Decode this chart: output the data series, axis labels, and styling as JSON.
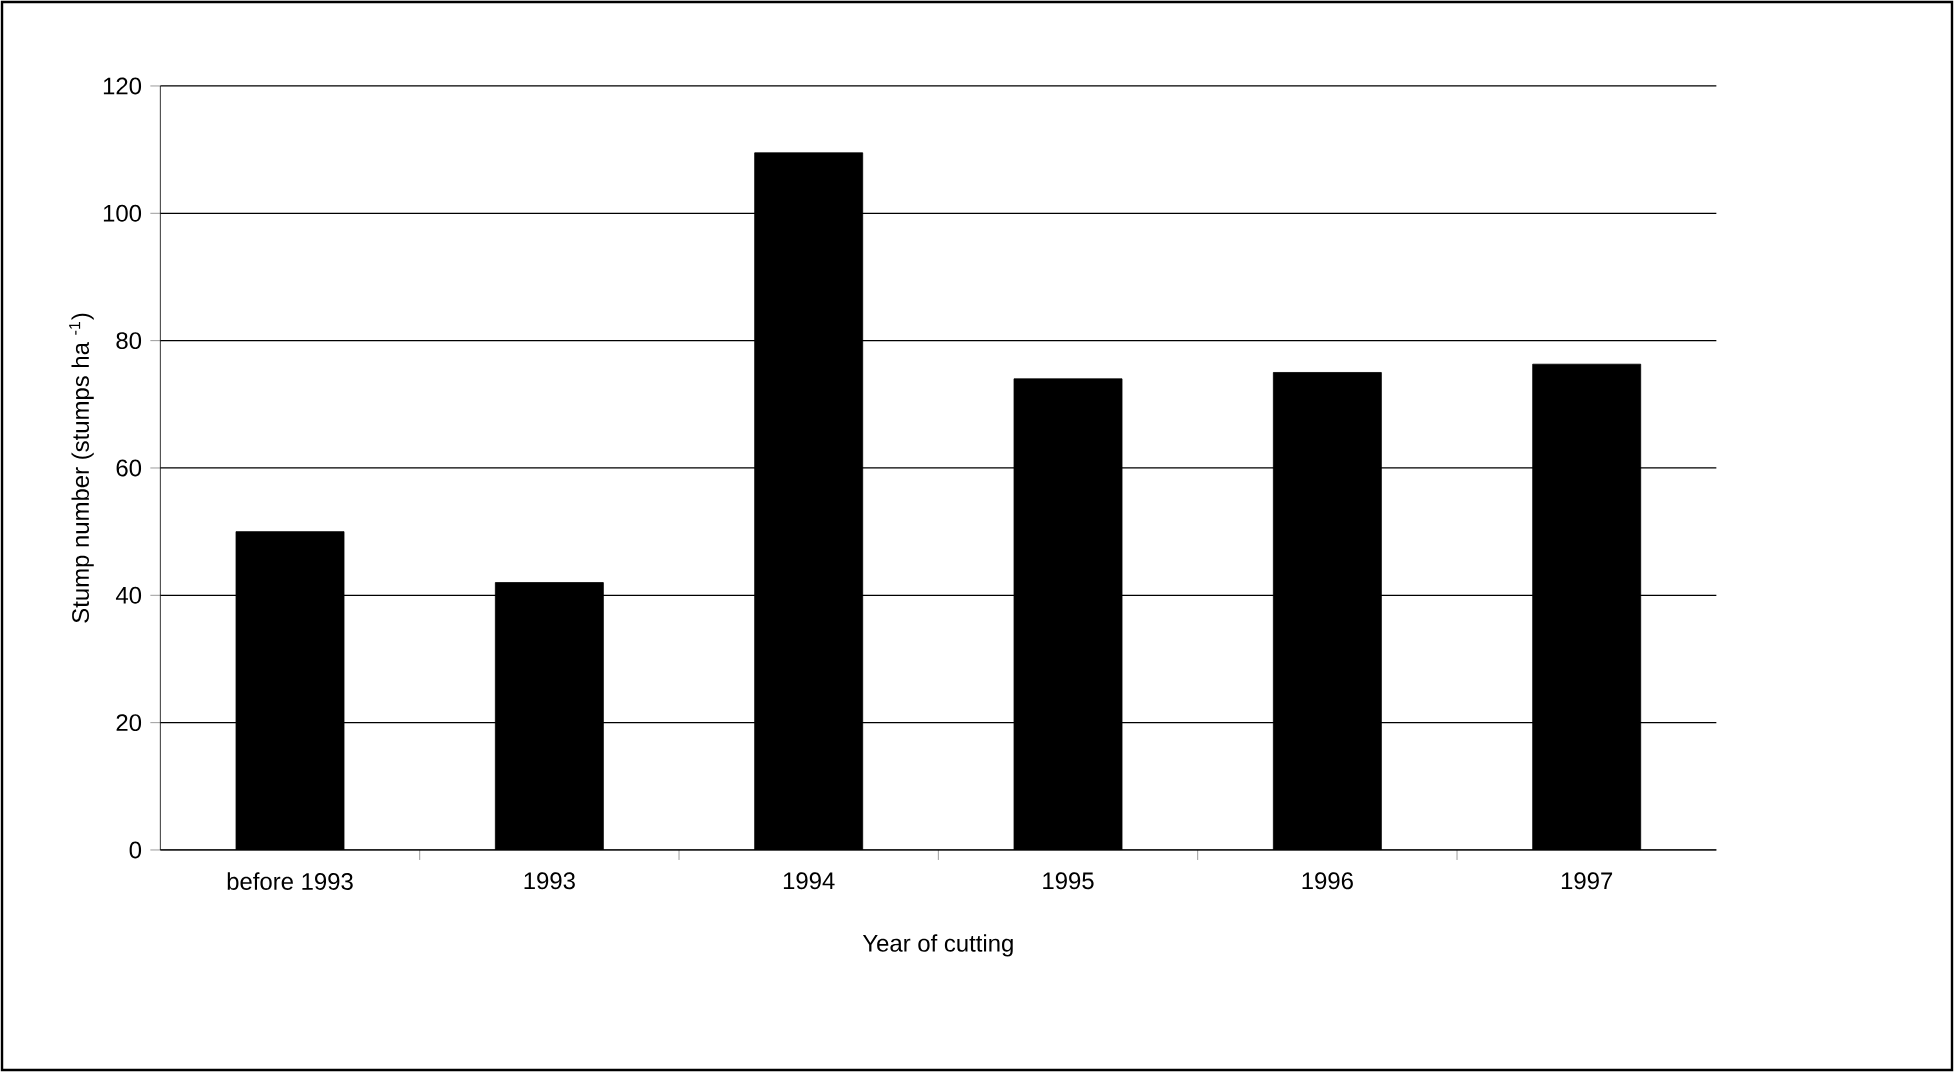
{
  "chart_data": {
    "type": "bar",
    "xlabel": "Year of cutting",
    "ylabel": "Stump number (stumps ha $^{-1}$)",
    "categories": [
      "before 1993",
      "1993",
      "1994",
      "1995",
      "1996",
      "1997"
    ],
    "values": [
      50,
      42,
      109.5,
      74,
      75,
      76.3
    ],
    "color": "#000000",
    "ylim": [
      0,
      120
    ],
    "yticks": [
      0,
      20,
      40,
      60,
      80,
      100,
      120
    ],
    "grid": "y"
  }
}
